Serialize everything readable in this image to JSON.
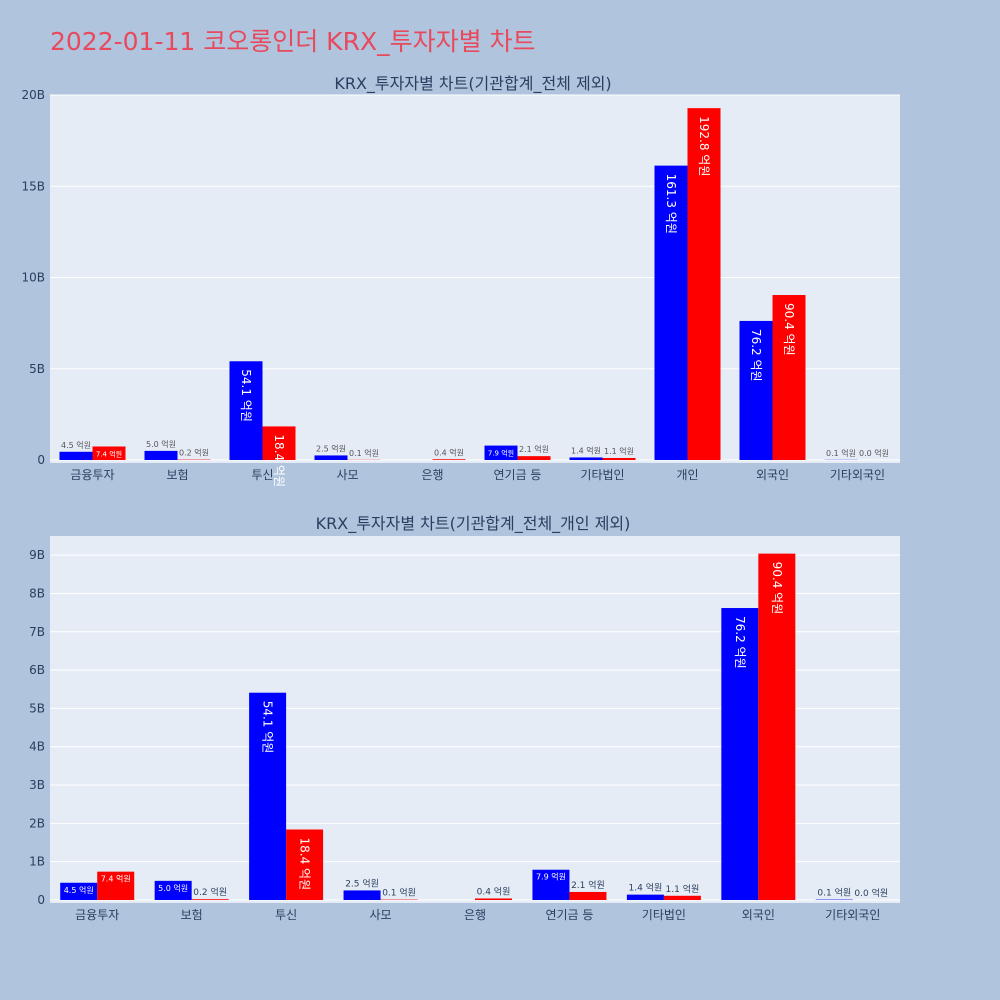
{
  "page": {
    "title": "2022-01-11 코오롱인더 KRX_투자자별 차트"
  },
  "colors": {
    "background": "#b0c4de",
    "plot_bg": "#e5ecf6",
    "series_1": "#0000ff",
    "series_2": "#ff0000",
    "title": "#e8495c",
    "text": "#2a3f5f"
  },
  "chart_data": [
    {
      "type": "bar",
      "title": "KRX_투자자별 차트(기관합계_전체 제외)",
      "categories": [
        "금융투자",
        "보험",
        "투신",
        "사모",
        "은행",
        "연기금 등",
        "기타법인",
        "개인",
        "외국인",
        "기타외국인"
      ],
      "series": [
        {
          "values": [
            450000000,
            500000000,
            5410000000,
            250000000,
            0,
            790000000,
            140000000,
            16130000000,
            7620000000,
            10000000
          ],
          "labels": [
            "4.5 억원",
            "5.0 억원",
            "54.1 억원",
            "2.5 억원",
            "",
            "7.9 억원",
            "1.4 억원",
            "161.3 억원",
            "76.2 억원",
            "0.1 억원"
          ]
        },
        {
          "values": [
            740000000,
            20000000,
            1840000000,
            10000000,
            40000000,
            210000000,
            110000000,
            19280000000,
            9040000000,
            0
          ],
          "labels": [
            "7.4 억원",
            "0.2 억원",
            "18.4 억원",
            "0.1 억원",
            "0.4 억원",
            "2.1 억원",
            "1.1 억원",
            "192.8 억원",
            "90.4 억원",
            "0.0 억원"
          ]
        }
      ],
      "ylim": [
        0,
        20000000000
      ],
      "yticks": [
        0,
        5000000000,
        10000000000,
        15000000000,
        20000000000
      ],
      "ytick_labels": [
        "0",
        "5B",
        "10B",
        "15B",
        "20B"
      ],
      "grid": true
    },
    {
      "type": "bar",
      "title": "KRX_투자자별 차트(기관합계_전체_개인 제외)",
      "categories": [
        "금융투자",
        "보험",
        "투신",
        "사모",
        "은행",
        "연기금 등",
        "기타법인",
        "외국인",
        "기타외국인"
      ],
      "series": [
        {
          "values": [
            450000000,
            500000000,
            5410000000,
            250000000,
            0,
            790000000,
            140000000,
            7620000000,
            10000000
          ],
          "labels": [
            "4.5 억원",
            "5.0 억원",
            "54.1 억원",
            "2.5 억원",
            "",
            "7.9 억원",
            "1.4 억원",
            "76.2 억원",
            "0.1 억원"
          ]
        },
        {
          "values": [
            740000000,
            20000000,
            1840000000,
            10000000,
            40000000,
            210000000,
            110000000,
            9040000000,
            0
          ],
          "labels": [
            "7.4 억원",
            "0.2 억원",
            "18.4 억원",
            "0.1 억원",
            "0.4 억원",
            "2.1 억원",
            "1.1 억원",
            "90.4 억원",
            "0.0 억원"
          ]
        }
      ],
      "ylim": [
        0,
        9500000000
      ],
      "yticks": [
        0,
        1000000000,
        2000000000,
        3000000000,
        4000000000,
        5000000000,
        6000000000,
        7000000000,
        8000000000,
        9000000000
      ],
      "ytick_labels": [
        "0",
        "1B",
        "2B",
        "3B",
        "4B",
        "5B",
        "6B",
        "7B",
        "8B",
        "9B"
      ],
      "grid": true
    }
  ]
}
